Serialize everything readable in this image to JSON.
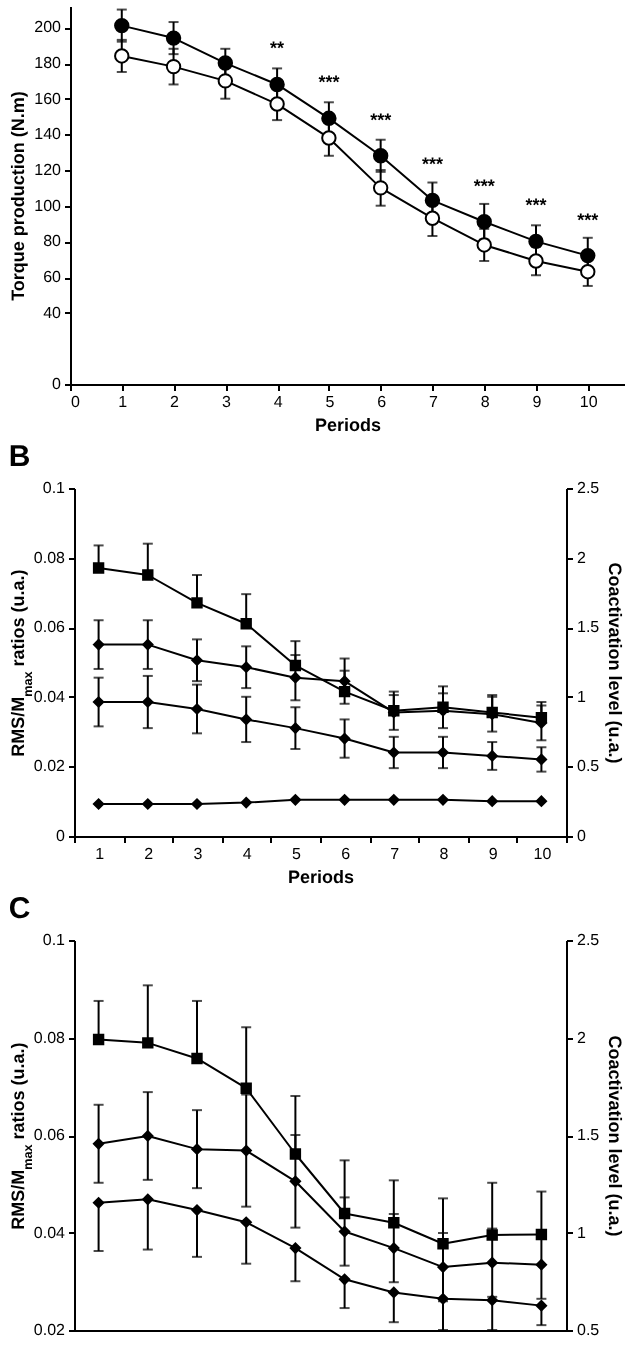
{
  "chart_data": [
    {
      "type": "line",
      "color": "#000000",
      "xlabel": "Periods",
      "ylabel": "Torque production (N.m)",
      "x": [
        1,
        2,
        3,
        4,
        5,
        6,
        7,
        8,
        9,
        10
      ],
      "xlim": [
        0,
        10.7
      ],
      "xticks": [
        0,
        1,
        2,
        3,
        4,
        5,
        6,
        7,
        8,
        9,
        10
      ],
      "ylim": [
        0,
        212
      ],
      "yticks": [
        0,
        40,
        60,
        80,
        100,
        120,
        140,
        160,
        180,
        200
      ],
      "marker": "circle",
      "series": [
        {
          "color": "#000000",
          "values": [
            201,
            194,
            180,
            168,
            149,
            128,
            103,
            91,
            80,
            72
          ],
          "errors": [
            9,
            9,
            8,
            9,
            9,
            9,
            10,
            10,
            9,
            10
          ]
        },
        {
          "color": "#ffffff",
          "values": [
            184,
            178,
            170,
            157,
            138,
            110,
            93,
            78,
            69,
            63
          ],
          "errors": [
            9,
            10,
            10,
            9,
            10,
            10,
            10,
            9,
            8,
            8
          ]
        }
      ],
      "annotations": [
        {
          "text": "**",
          "x": 4,
          "y": 168
        },
        {
          "text": "***",
          "x": 5,
          "y": 149
        },
        {
          "text": "***",
          "x": 6,
          "y": 128
        },
        {
          "text": "***",
          "x": 7,
          "y": 103
        },
        {
          "text": "***",
          "x": 8,
          "y": 91
        },
        {
          "text": "***",
          "x": 9,
          "y": 80
        },
        {
          "text": "***",
          "x": 10,
          "y": 72
        }
      ]
    },
    {
      "type": "line",
      "color": "#000000",
      "title": "B",
      "xlabel": "Periods",
      "ylabel": "RMS/M$_{max}$ ratios (u.a.)",
      "y2label": "Coactivation level (u.a.)",
      "categories": [
        "1",
        "2",
        "3",
        "4",
        "5",
        "6",
        "7",
        "8",
        "9",
        "10"
      ],
      "ylim": [
        0,
        0.1
      ],
      "yticks": [
        0,
        0.02,
        0.04,
        0.06,
        0.08,
        0.1
      ],
      "y2lim": [
        0,
        2.5
      ],
      "y2ticks": [
        0,
        0.5,
        1,
        1.5,
        2,
        2.5
      ],
      "series": [
        {
          "color": "#000000",
          "marker": "square",
          "values": [
            0.077,
            0.075,
            0.067,
            0.061,
            0.049,
            0.0415,
            0.036,
            0.037,
            0.0355,
            0.034
          ],
          "errors": [
            [
              0.077,
              0.0835
            ],
            [
              0.075,
              0.084
            ],
            [
              0.067,
              0.075
            ],
            [
              0.061,
              0.0695
            ],
            [
              0.049,
              0.056
            ],
            [
              0.0415,
              0.0475
            ],
            [
              0.036,
              0.0415
            ],
            [
              0.037,
              0.043
            ],
            [
              0.0355,
              0.0405
            ],
            [
              0.034,
              0.0385
            ]
          ]
        },
        {
          "color": "#000000",
          "marker": "diamond",
          "values": [
            0.055,
            0.055,
            0.0505,
            0.0485,
            0.0455,
            0.0445,
            0.0355,
            0.036,
            0.035,
            0.0325
          ],
          "errors": [
            0.007,
            0.007,
            0.006,
            0.006,
            0.0065,
            0.0065,
            0.005,
            0.005,
            0.005,
            0.005
          ]
        },
        {
          "color": "#000000",
          "marker": "diamond",
          "values": [
            0.0385,
            0.0385,
            0.0365,
            0.0335,
            0.031,
            0.028,
            0.024,
            0.024,
            0.023,
            0.022
          ],
          "errors": [
            0.007,
            0.0075,
            0.007,
            0.0065,
            0.006,
            0.0055,
            0.0045,
            0.0045,
            0.004,
            0.0035
          ]
        },
        {
          "color": "#000000",
          "marker": "diamond",
          "axis": "y2",
          "values": [
            0.23,
            0.23,
            0.23,
            0.24,
            0.26,
            0.26,
            0.26,
            0.26,
            0.25,
            0.25
          ]
        }
      ]
    },
    {
      "type": "line",
      "color": "#000000",
      "title": "C",
      "ylabel": "RMS/M$_{max}$ ratios (u.a.)",
      "y2label": "Coactivation level (u.a.)",
      "categories": [
        null,
        null,
        null,
        null,
        null,
        null,
        null,
        null,
        null,
        null
      ],
      "ylim": [
        0.02,
        0.1
      ],
      "yticks": [
        0.02,
        0.04,
        0.06,
        0.08,
        0.1
      ],
      "y2lim": [
        0.5,
        2.5
      ],
      "y2ticks": [
        0.5,
        1,
        1.5,
        2,
        2.5
      ],
      "series": [
        {
          "color": "#000000",
          "marker": "square",
          "values": [
            0.0796,
            0.0789,
            0.0757,
            0.0696,
            0.0561,
            0.0439,
            0.042,
            0.0377,
            0.0395,
            0.0396
          ],
          "errors": [
            [
              0.0796,
              0.0875
            ],
            [
              0.0789,
              0.0907
            ],
            [
              0.0757,
              0.0875
            ],
            [
              0.0696,
              0.0821
            ],
            [
              0.0561,
              0.068
            ],
            [
              0.0439,
              0.0548
            ],
            [
              0.042,
              0.0507
            ],
            [
              0.0377,
              0.047
            ],
            [
              0.0395,
              0.0502
            ],
            [
              0.0396,
              0.0484
            ]
          ]
        },
        {
          "color": "#000000",
          "marker": "diamond",
          "values": [
            0.0582,
            0.0598,
            0.0571,
            0.0568,
            0.0505,
            0.0402,
            0.0368,
            0.0329,
            0.0338,
            0.0334
          ],
          "errors": [
            0.008,
            0.009,
            0.008,
            0.0115,
            0.0095,
            0.007,
            0.007,
            0.007,
            0.007,
            0.007
          ]
        },
        {
          "color": "#000000",
          "marker": "diamond",
          "values": [
            0.0461,
            0.0468,
            0.0446,
            0.0421,
            0.0368,
            0.0304,
            0.0277,
            0.0264,
            0.0261,
            0.025
          ],
          "errors": [
            [
              0.0362,
              0.0461
            ],
            [
              0.0365,
              0.0468
            ],
            [
              0.035,
              0.0446
            ],
            [
              0.0336,
              0.0421
            ],
            [
              0.03,
              0.0368
            ],
            [
              0.0245,
              0.0304
            ],
            [
              0.0216,
              0.0277
            ],
            [
              0.02,
              0.0264
            ],
            [
              0.02,
              0.0261
            ],
            [
              0.021,
              0.025
            ]
          ]
        }
      ]
    }
  ]
}
